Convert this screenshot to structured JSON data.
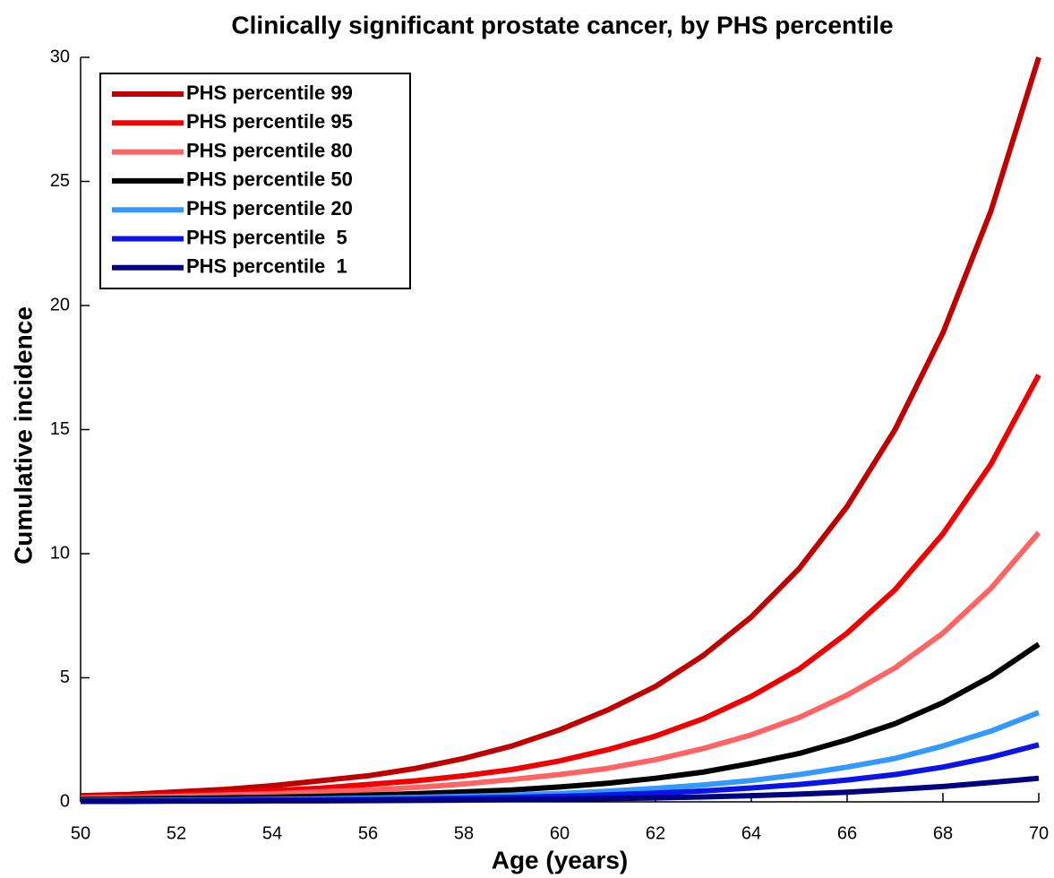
{
  "chart_data": {
    "type": "line",
    "title": "Clinically significant prostate cancer, by PHS percentile",
    "x_label": "Age (years)",
    "y_label": "Cumulative incidence",
    "x": [
      50,
      51,
      52,
      53,
      54,
      55,
      56,
      57,
      58,
      59,
      60,
      61,
      62,
      63,
      64,
      65,
      66,
      67,
      68,
      69,
      70
    ],
    "xlim": [
      50,
      70
    ],
    "xticks": [
      50,
      52,
      54,
      56,
      58,
      60,
      62,
      64,
      66,
      68,
      70
    ],
    "ylim": [
      0,
      30
    ],
    "yticks": [
      0,
      5,
      10,
      15,
      20,
      25,
      30
    ],
    "legend": "upper left",
    "series": [
      {
        "name": "PHS percentile 99",
        "color": "#c00000",
        "values": [
          0.25,
          0.3,
          0.4,
          0.5,
          0.65,
          0.85,
          1.05,
          1.35,
          1.75,
          2.25,
          2.9,
          3.7,
          4.65,
          5.9,
          7.45,
          9.4,
          11.9,
          15.0,
          18.9,
          23.8,
          30.0
        ]
      },
      {
        "name": "PHS percentile 95",
        "color": "#f00000",
        "values": [
          0.2,
          0.25,
          0.3,
          0.35,
          0.45,
          0.55,
          0.7,
          0.85,
          1.05,
          1.3,
          1.65,
          2.1,
          2.65,
          3.35,
          4.25,
          5.35,
          6.8,
          8.55,
          10.8,
          13.6,
          17.2
        ]
      },
      {
        "name": "PHS percentile 80",
        "color": "#ff6464",
        "values": [
          0.15,
          0.18,
          0.22,
          0.27,
          0.32,
          0.4,
          0.48,
          0.58,
          0.72,
          0.9,
          1.1,
          1.35,
          1.7,
          2.15,
          2.7,
          3.4,
          4.3,
          5.4,
          6.8,
          8.6,
          10.85
        ]
      },
      {
        "name": "PHS percentile 50",
        "color": "#000000",
        "values": [
          0.1,
          0.12,
          0.14,
          0.16,
          0.19,
          0.22,
          0.27,
          0.33,
          0.4,
          0.48,
          0.6,
          0.75,
          0.95,
          1.2,
          1.55,
          1.95,
          2.5,
          3.15,
          4.0,
          5.05,
          6.35
        ]
      },
      {
        "name": "PHS percentile 20",
        "color": "#3399ff",
        "values": [
          0.05,
          0.06,
          0.07,
          0.08,
          0.1,
          0.12,
          0.15,
          0.18,
          0.22,
          0.27,
          0.34,
          0.43,
          0.54,
          0.68,
          0.86,
          1.1,
          1.4,
          1.75,
          2.25,
          2.85,
          3.6
        ]
      },
      {
        "name": "PHS percentile  5",
        "color": "#0a14e6",
        "values": [
          0.03,
          0.04,
          0.05,
          0.06,
          0.07,
          0.08,
          0.1,
          0.12,
          0.15,
          0.18,
          0.22,
          0.28,
          0.35,
          0.44,
          0.56,
          0.7,
          0.88,
          1.1,
          1.4,
          1.8,
          2.3
        ]
      },
      {
        "name": "PHS percentile  1",
        "color": "#000080",
        "values": [
          0.02,
          0.02,
          0.03,
          0.03,
          0.04,
          0.04,
          0.05,
          0.06,
          0.07,
          0.09,
          0.11,
          0.13,
          0.16,
          0.2,
          0.25,
          0.31,
          0.39,
          0.5,
          0.62,
          0.78,
          0.95
        ]
      }
    ]
  }
}
